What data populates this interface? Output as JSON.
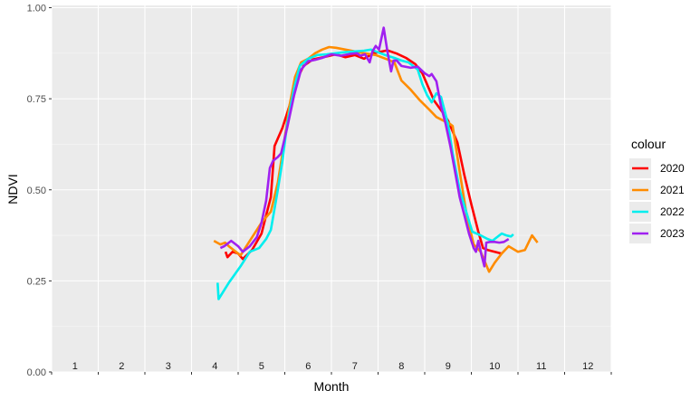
{
  "chart_data": {
    "type": "line",
    "xlabel": "Month",
    "ylabel": "NDVI",
    "xlim": [
      1,
      12.5
    ],
    "ylim": [
      0,
      1
    ],
    "y_ticks": [
      "0.00",
      "0.25",
      "0.50",
      "0.75",
      "1.00"
    ],
    "month_labels": [
      "1",
      "2",
      "3",
      "4",
      "5",
      "6",
      "7",
      "8",
      "9",
      "10",
      "11",
      "12"
    ],
    "grid": true,
    "legend_title": "colour",
    "legend_position": "right",
    "series": [
      {
        "name": "2020",
        "color": "#ff0000",
        "points": [
          [
            4.23,
            0.33
          ],
          [
            4.27,
            0.315
          ],
          [
            4.38,
            0.33
          ],
          [
            4.5,
            0.325
          ],
          [
            4.6,
            0.31
          ],
          [
            4.8,
            0.335
          ],
          [
            5.0,
            0.38
          ],
          [
            5.1,
            0.43
          ],
          [
            5.2,
            0.48
          ],
          [
            5.28,
            0.62
          ],
          [
            5.45,
            0.67
          ],
          [
            5.6,
            0.73
          ],
          [
            5.75,
            0.8
          ],
          [
            5.9,
            0.84
          ],
          [
            6.1,
            0.858
          ],
          [
            6.4,
            0.866
          ],
          [
            6.6,
            0.872
          ],
          [
            6.8,
            0.864
          ],
          [
            7.0,
            0.87
          ],
          [
            7.2,
            0.86
          ],
          [
            7.4,
            0.875
          ],
          [
            7.7,
            0.883
          ],
          [
            7.9,
            0.874
          ],
          [
            8.1,
            0.862
          ],
          [
            8.3,
            0.845
          ],
          [
            8.45,
            0.82
          ],
          [
            8.7,
            0.745
          ],
          [
            8.9,
            0.71
          ],
          [
            9.0,
            0.69
          ],
          [
            9.2,
            0.63
          ],
          [
            9.35,
            0.54
          ],
          [
            9.5,
            0.46
          ],
          [
            9.65,
            0.385
          ],
          [
            9.75,
            0.34
          ],
          [
            9.85,
            0.335
          ],
          [
            10.0,
            0.33
          ],
          [
            10.15,
            0.325
          ]
        ]
      },
      {
        "name": "2021",
        "color": "#ff8c00",
        "points": [
          [
            3.98,
            0.36
          ],
          [
            4.12,
            0.35
          ],
          [
            4.22,
            0.355
          ],
          [
            4.3,
            0.345
          ],
          [
            4.45,
            0.33
          ],
          [
            4.55,
            0.32
          ],
          [
            4.75,
            0.36
          ],
          [
            5.0,
            0.41
          ],
          [
            5.2,
            0.44
          ],
          [
            5.35,
            0.52
          ],
          [
            5.45,
            0.6
          ],
          [
            5.6,
            0.73
          ],
          [
            5.72,
            0.81
          ],
          [
            5.85,
            0.85
          ],
          [
            6.0,
            0.86
          ],
          [
            6.15,
            0.875
          ],
          [
            6.3,
            0.885
          ],
          [
            6.45,
            0.892
          ],
          [
            6.6,
            0.89
          ],
          [
            6.8,
            0.885
          ],
          [
            7.0,
            0.88
          ],
          [
            7.2,
            0.875
          ],
          [
            7.45,
            0.87
          ],
          [
            7.7,
            0.858
          ],
          [
            7.85,
            0.85
          ],
          [
            8.0,
            0.8
          ],
          [
            8.2,
            0.775
          ],
          [
            8.4,
            0.745
          ],
          [
            8.6,
            0.72
          ],
          [
            8.75,
            0.7
          ],
          [
            8.9,
            0.69
          ],
          [
            9.0,
            0.685
          ],
          [
            9.1,
            0.675
          ],
          [
            9.25,
            0.55
          ],
          [
            9.4,
            0.43
          ],
          [
            9.55,
            0.35
          ],
          [
            9.7,
            0.33
          ],
          [
            9.88,
            0.275
          ],
          [
            10.0,
            0.3
          ],
          [
            10.15,
            0.325
          ],
          [
            10.3,
            0.345
          ],
          [
            10.5,
            0.33
          ],
          [
            10.65,
            0.335
          ],
          [
            10.8,
            0.375
          ],
          [
            10.92,
            0.355
          ]
        ]
      },
      {
        "name": "2022",
        "color": "#00eeee",
        "points": [
          [
            4.06,
            0.245
          ],
          [
            4.08,
            0.2
          ],
          [
            4.3,
            0.245
          ],
          [
            4.55,
            0.29
          ],
          [
            4.75,
            0.33
          ],
          [
            4.95,
            0.34
          ],
          [
            5.1,
            0.365
          ],
          [
            5.2,
            0.39
          ],
          [
            5.35,
            0.5
          ],
          [
            5.45,
            0.58
          ],
          [
            5.55,
            0.68
          ],
          [
            5.7,
            0.78
          ],
          [
            5.82,
            0.84
          ],
          [
            6.0,
            0.86
          ],
          [
            6.2,
            0.87
          ],
          [
            6.4,
            0.872
          ],
          [
            6.6,
            0.875
          ],
          [
            6.8,
            0.878
          ],
          [
            7.0,
            0.88
          ],
          [
            7.2,
            0.882
          ],
          [
            7.35,
            0.885
          ],
          [
            7.55,
            0.875
          ],
          [
            7.7,
            0.868
          ],
          [
            7.85,
            0.862
          ],
          [
            8.0,
            0.855
          ],
          [
            8.15,
            0.85
          ],
          [
            8.35,
            0.83
          ],
          [
            8.45,
            0.79
          ],
          [
            8.55,
            0.76
          ],
          [
            8.65,
            0.74
          ],
          [
            8.75,
            0.765
          ],
          [
            8.85,
            0.755
          ],
          [
            9.0,
            0.68
          ],
          [
            9.1,
            0.6
          ],
          [
            9.25,
            0.5
          ],
          [
            9.4,
            0.435
          ],
          [
            9.52,
            0.385
          ],
          [
            9.7,
            0.375
          ],
          [
            9.85,
            0.365
          ],
          [
            9.95,
            0.36
          ],
          [
            10.05,
            0.37
          ],
          [
            10.15,
            0.38
          ],
          [
            10.25,
            0.375
          ],
          [
            10.35,
            0.372
          ],
          [
            10.4,
            0.378
          ]
        ]
      },
      {
        "name": "2023",
        "color": "#a020f0",
        "points": [
          [
            4.12,
            0.34
          ],
          [
            4.2,
            0.345
          ],
          [
            4.35,
            0.36
          ],
          [
            4.5,
            0.345
          ],
          [
            4.6,
            0.33
          ],
          [
            4.75,
            0.345
          ],
          [
            4.9,
            0.37
          ],
          [
            5.0,
            0.41
          ],
          [
            5.1,
            0.47
          ],
          [
            5.18,
            0.56
          ],
          [
            5.25,
            0.58
          ],
          [
            5.35,
            0.59
          ],
          [
            5.42,
            0.6
          ],
          [
            5.55,
            0.67
          ],
          [
            5.7,
            0.76
          ],
          [
            5.85,
            0.83
          ],
          [
            6.0,
            0.853
          ],
          [
            6.15,
            0.857
          ],
          [
            6.3,
            0.862
          ],
          [
            6.5,
            0.872
          ],
          [
            6.7,
            0.868
          ],
          [
            6.9,
            0.873
          ],
          [
            7.05,
            0.875
          ],
          [
            7.12,
            0.868
          ],
          [
            7.22,
            0.872
          ],
          [
            7.32,
            0.85
          ],
          [
            7.38,
            0.88
          ],
          [
            7.45,
            0.895
          ],
          [
            7.52,
            0.885
          ],
          [
            7.62,
            0.945
          ],
          [
            7.7,
            0.88
          ],
          [
            7.78,
            0.825
          ],
          [
            7.83,
            0.855
          ],
          [
            7.9,
            0.855
          ],
          [
            8.0,
            0.84
          ],
          [
            8.2,
            0.835
          ],
          [
            8.35,
            0.838
          ],
          [
            8.5,
            0.82
          ],
          [
            8.6,
            0.812
          ],
          [
            8.65,
            0.818
          ],
          [
            8.75,
            0.798
          ],
          [
            8.85,
            0.73
          ],
          [
            8.95,
            0.68
          ],
          [
            9.05,
            0.62
          ],
          [
            9.15,
            0.55
          ],
          [
            9.25,
            0.48
          ],
          [
            9.35,
            0.43
          ],
          [
            9.45,
            0.38
          ],
          [
            9.55,
            0.34
          ],
          [
            9.6,
            0.33
          ],
          [
            9.65,
            0.36
          ],
          [
            9.72,
            0.32
          ],
          [
            9.78,
            0.29
          ],
          [
            9.82,
            0.355
          ],
          [
            9.9,
            0.357
          ],
          [
            10.0,
            0.357
          ],
          [
            10.1,
            0.355
          ],
          [
            10.2,
            0.357
          ],
          [
            10.3,
            0.365
          ]
        ]
      }
    ]
  }
}
